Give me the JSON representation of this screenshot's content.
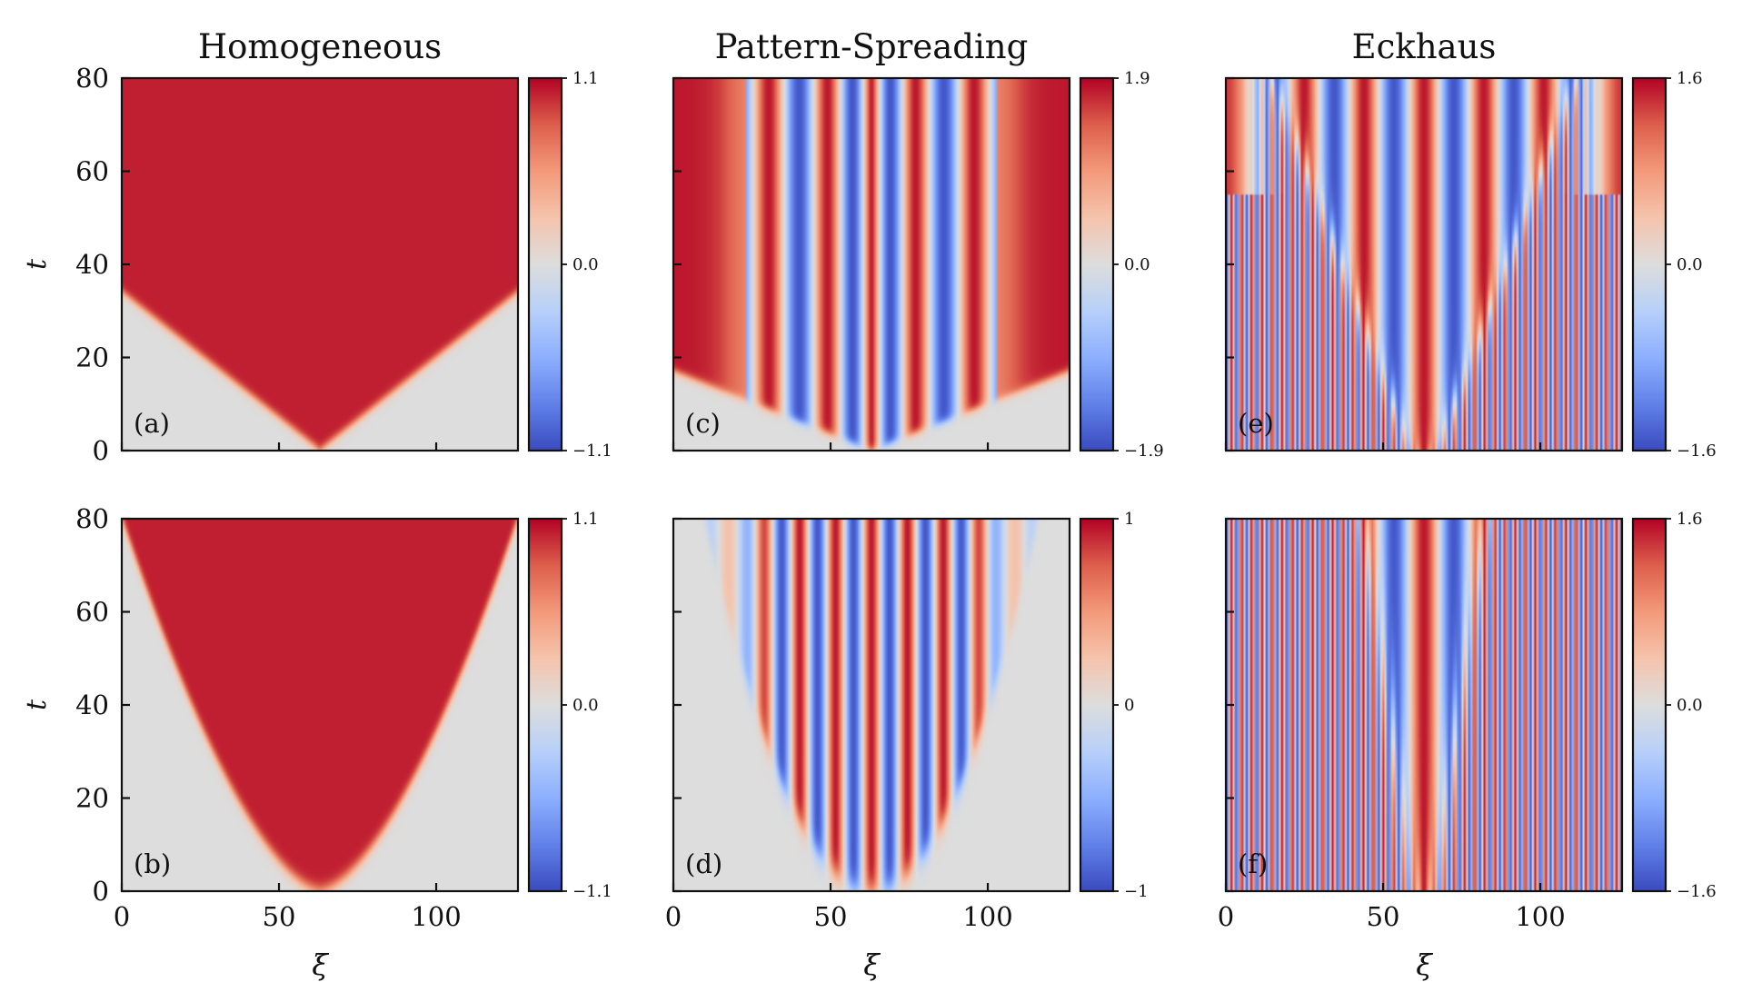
{
  "chart_data": [
    {
      "type": "heatmap",
      "id": "a",
      "panel_label": "(a)",
      "title": "Homogeneous",
      "xlabel": "",
      "ylabel": "t",
      "xlim": [
        0,
        126
      ],
      "ylim": [
        0,
        80
      ],
      "xticks": [
        0,
        50,
        100
      ],
      "xtick_labels": [],
      "yticks": [
        0,
        20,
        40,
        60,
        80
      ],
      "ytick_labels": [
        "0",
        "20",
        "40",
        "60",
        "80"
      ],
      "field": {
        "kind": "wedge",
        "center": 63,
        "front_speed": 1.8,
        "amplitude": 1.1
      },
      "colorbar": {
        "min": -1.1,
        "max": 1.1,
        "ticks": [
          -1.1,
          0.0,
          1.1
        ],
        "tick_labels": [
          "−1.1",
          "0.0",
          "1.1"
        ]
      }
    },
    {
      "type": "heatmap",
      "id": "c",
      "panel_label": "(c)",
      "title": "Pattern-Spreading",
      "xlabel": "",
      "ylabel": "",
      "xlim": [
        0,
        126
      ],
      "ylim": [
        0,
        80
      ],
      "xticks": [
        0,
        50,
        100
      ],
      "xtick_labels": [],
      "yticks": [
        0,
        20,
        40,
        60,
        80
      ],
      "ytick_labels": [],
      "field": {
        "kind": "pattern-wedge",
        "center": 63,
        "front_speed": 3.6,
        "amplitude": 1.9
      },
      "colorbar": {
        "min": -1.9,
        "max": 1.9,
        "ticks": [
          -1.9,
          0.0,
          1.9
        ],
        "tick_labels": [
          "−1.9",
          "0.0",
          "1.9"
        ]
      }
    },
    {
      "type": "heatmap",
      "id": "e",
      "panel_label": "(e)",
      "title": "Eckhaus",
      "xlabel": "",
      "ylabel": "",
      "xlim": [
        0,
        126
      ],
      "ylim": [
        0,
        80
      ],
      "xticks": [
        0,
        50,
        100
      ],
      "xtick_labels": [],
      "yticks": [
        0,
        20,
        40,
        60,
        80
      ],
      "ytick_labels": [],
      "field": {
        "kind": "eckhaus",
        "center": 63,
        "amplitude": 1.6
      },
      "colorbar": {
        "min": -1.6,
        "max": 1.6,
        "ticks": [
          -1.6,
          0.0,
          1.6
        ],
        "tick_labels": [
          "−1.6",
          "0.0",
          "1.6"
        ]
      }
    },
    {
      "type": "heatmap",
      "id": "b",
      "panel_label": "(b)",
      "title": "",
      "xlabel": "ξ",
      "ylabel": "t",
      "xlim": [
        0,
        126
      ],
      "ylim": [
        0,
        80
      ],
      "xticks": [
        0,
        50,
        100
      ],
      "xtick_labels": [
        "0",
        "50",
        "100"
      ],
      "yticks": [
        0,
        20,
        40,
        60,
        80
      ],
      "ytick_labels": [
        "0",
        "20",
        "40",
        "60",
        "80"
      ],
      "field": {
        "kind": "parabola",
        "center": 63,
        "half_width_at_top": 63,
        "amplitude": 1.1
      },
      "colorbar": {
        "min": -1.1,
        "max": 1.1,
        "ticks": [
          -1.1,
          0.0,
          1.1
        ],
        "tick_labels": [
          "−1.1",
          "0.0",
          "1.1"
        ]
      }
    },
    {
      "type": "heatmap",
      "id": "d",
      "panel_label": "(d)",
      "title": "",
      "xlabel": "ξ",
      "ylabel": "",
      "xlim": [
        0,
        126
      ],
      "ylim": [
        0,
        80
      ],
      "xticks": [
        0,
        50,
        100
      ],
      "xtick_labels": [
        "0",
        "50",
        "100"
      ],
      "yticks": [
        0,
        20,
        40,
        60,
        80
      ],
      "ytick_labels": [],
      "field": {
        "kind": "pattern-parabola",
        "center": 63,
        "half_width_at_top": 53,
        "amplitude": 1.0
      },
      "colorbar": {
        "min": -1,
        "max": 1,
        "ticks": [
          -1,
          0,
          1
        ],
        "tick_labels": [
          "−1",
          "0",
          "1"
        ]
      }
    },
    {
      "type": "heatmap",
      "id": "f",
      "panel_label": "(f)",
      "title": "",
      "xlabel": "ξ",
      "ylabel": "",
      "xlim": [
        0,
        126
      ],
      "ylim": [
        0,
        80
      ],
      "xticks": [
        0,
        50,
        100
      ],
      "xtick_labels": [
        "0",
        "50",
        "100"
      ],
      "yticks": [
        0,
        20,
        40,
        60,
        80
      ],
      "ytick_labels": [],
      "field": {
        "kind": "eckhaus-fine",
        "center": 63,
        "amplitude": 1.6
      },
      "colorbar": {
        "min": -1.6,
        "max": 1.6,
        "ticks": [
          -1.6,
          0.0,
          1.6
        ],
        "tick_labels": [
          "−1.6",
          "0.0",
          "1.6"
        ]
      }
    }
  ],
  "colormap": "coolwarm"
}
